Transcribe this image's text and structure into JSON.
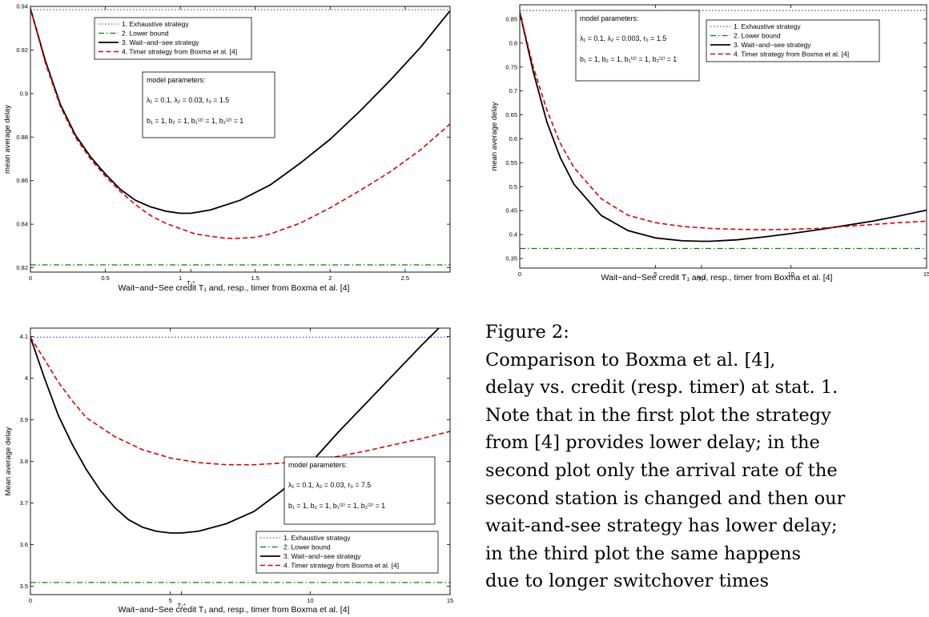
{
  "colors": {
    "exhaustive": "#5555dd",
    "lower_bound": "#008000",
    "wait_and_see": "#000000",
    "timer": "#dd0000"
  },
  "chart_data": [
    {
      "type": "line",
      "ylabel": "mean average delay",
      "xlabel": "Wait−and−See credit T₁ and, resp., timer from Boxma et al. [4]",
      "xlim": [
        0,
        2.8
      ],
      "ylim": [
        0.818,
        0.94
      ],
      "xticks": [
        "0",
        "0.5",
        "1",
        "1.5",
        "2",
        "2.5"
      ],
      "xtick_values": [
        0,
        0.5,
        1,
        1.5,
        2,
        2.5
      ],
      "yticks": [
        "0.82",
        "0.84",
        "0.86",
        "0.88",
        "0.9",
        "0.92",
        "0.94"
      ],
      "ytick_values": [
        0.82,
        0.84,
        0.86,
        0.88,
        0.9,
        0.92,
        0.94
      ],
      "marker": {
        "label": "T₁*",
        "x": 1.07
      },
      "legend": [
        "1. Exhaustive strategy",
        "2. Lower bound",
        "3. Wait−and−see strategy",
        "4. Timer strategy from Boxma et al. [4]"
      ],
      "params_title": "model parameters:",
      "params_line1": "λ₁ = 0.1, λ₂ = 0.03, r₀ = 1.5",
      "params_line2": "b₁ = 1, b₂ = 1, b₁⁽²⁾ = 1, b₂⁽²⁾ = 1",
      "series": [
        {
          "name": "1. Exhaustive strategy",
          "x": [
            0,
            2.8
          ],
          "y": [
            0.9385,
            0.9385
          ]
        },
        {
          "name": "2. Lower bound",
          "x": [
            0,
            2.8
          ],
          "y": [
            0.8213,
            0.8213
          ]
        },
        {
          "name": "3. Wait−and−see strategy",
          "x": [
            0,
            0.1,
            0.2,
            0.3,
            0.4,
            0.5,
            0.6,
            0.7,
            0.8,
            0.9,
            1.0,
            1.07,
            1.2,
            1.4,
            1.6,
            1.8,
            2.0,
            2.2,
            2.4,
            2.6,
            2.8
          ],
          "y": [
            0.939,
            0.915,
            0.895,
            0.881,
            0.871,
            0.863,
            0.856,
            0.851,
            0.848,
            0.846,
            0.845,
            0.845,
            0.8465,
            0.851,
            0.858,
            0.868,
            0.879,
            0.892,
            0.906,
            0.921,
            0.938
          ]
        },
        {
          "name": "4. Timer strategy from Boxma et al. [4]",
          "x": [
            0,
            0.1,
            0.2,
            0.3,
            0.4,
            0.5,
            0.6,
            0.7,
            0.8,
            0.9,
            1.0,
            1.1,
            1.2,
            1.3,
            1.4,
            1.5,
            1.6,
            1.8,
            2.0,
            2.2,
            2.4,
            2.6,
            2.8
          ],
          "y": [
            0.939,
            0.914,
            0.894,
            0.88,
            0.87,
            0.862,
            0.855,
            0.849,
            0.844,
            0.8405,
            0.838,
            0.8355,
            0.8345,
            0.8335,
            0.8335,
            0.834,
            0.8355,
            0.8405,
            0.8475,
            0.8555,
            0.864,
            0.874,
            0.886
          ]
        }
      ]
    },
    {
      "type": "line",
      "ylabel": "mean average delay",
      "xlabel": "Wait−and−See credit T₁ and, resp., timer from Boxma et al. [4]",
      "xlim": [
        0,
        15
      ],
      "ylim": [
        0.33,
        0.88
      ],
      "xticks": [
        "0",
        "5",
        "10",
        "15"
      ],
      "xtick_values": [
        0,
        5,
        10,
        15
      ],
      "yticks": [
        "0.35",
        "0.4",
        "0.45",
        "0.5",
        "0.55",
        "0.6",
        "0.65",
        "0.7",
        "0.75",
        "0.8",
        "0.85"
      ],
      "ytick_values": [
        0.35,
        0.4,
        0.45,
        0.5,
        0.55,
        0.6,
        0.65,
        0.7,
        0.75,
        0.8,
        0.85
      ],
      "marker": {
        "label": "T₁*",
        "x": 6.7
      },
      "legend": [
        "1. Exhaustive strategy",
        "2. Lower bound",
        "3. Wait−and−see strategy",
        "4. Timer strategy from Boxma et al. [4]"
      ],
      "params_title": "model parameters:",
      "params_line1": "λ₁ = 0.1, λ₂ = 0.003, r₀ = 1.5",
      "params_line2": "b₁ = 1, b₂ = 1, b₁⁽²⁾ = 1, b₂⁽²⁾ = 1",
      "series": [
        {
          "name": "1. Exhaustive strategy",
          "x": [
            0,
            15
          ],
          "y": [
            0.868,
            0.868
          ]
        },
        {
          "name": "2. Lower bound",
          "x": [
            0,
            15
          ],
          "y": [
            0.371,
            0.371
          ]
        },
        {
          "name": "3. Wait−and−see strategy",
          "x": [
            0,
            0.5,
            1,
            1.5,
            2,
            3,
            4,
            5,
            6,
            6.7,
            7,
            8,
            9,
            10,
            11,
            12,
            13,
            14,
            15
          ],
          "y": [
            0.865,
            0.74,
            0.635,
            0.56,
            0.505,
            0.44,
            0.408,
            0.393,
            0.387,
            0.386,
            0.386,
            0.389,
            0.395,
            0.402,
            0.41,
            0.419,
            0.428,
            0.439,
            0.451
          ]
        },
        {
          "name": "4. Timer strategy from Boxma et al. [4]",
          "x": [
            0,
            0.5,
            1,
            1.5,
            2,
            3,
            4,
            5,
            6,
            7,
            8,
            9,
            10,
            11,
            12,
            13,
            14,
            15
          ],
          "y": [
            0.865,
            0.75,
            0.66,
            0.59,
            0.54,
            0.475,
            0.44,
            0.425,
            0.417,
            0.413,
            0.411,
            0.41,
            0.411,
            0.413,
            0.417,
            0.421,
            0.425,
            0.428
          ]
        }
      ]
    },
    {
      "type": "line",
      "ylabel": "Mean average delay",
      "xlabel": "Wait−and−See credit T₁ and, resp., timer from Boxma et al. [4]",
      "xlim": [
        0,
        15
      ],
      "ylim": [
        3.48,
        4.12
      ],
      "xticks": [
        "0",
        "5",
        "10",
        "15"
      ],
      "xtick_values": [
        0,
        5,
        10,
        15
      ],
      "yticks": [
        "3.5",
        "3.6",
        "3.7",
        "3.8",
        "3.9",
        "4",
        "4.1"
      ],
      "ytick_values": [
        3.5,
        3.6,
        3.7,
        3.8,
        3.9,
        4,
        4.1
      ],
      "marker": {
        "label": "T₁*",
        "x": 5.4
      },
      "legend": [
        "1. Exhaustive strategy",
        "2. Lower bound",
        "3. Wait−and−see strategy",
        "4. Timer strategy from Boxma et al. [4]"
      ],
      "params_title": "model parameters:",
      "params_line1": "λ₁ = 0.1, λ₂ = 0.03, r₀ = 7.5",
      "params_line2": "b₁ = 1, b₂ = 1, b₁⁽²⁾ = 1, b₂⁽²⁾ = 1",
      "series": [
        {
          "name": "1. Exhaustive strategy",
          "x": [
            0,
            15
          ],
          "y": [
            4.098,
            4.098
          ]
        },
        {
          "name": "2. Lower bound",
          "x": [
            0,
            15
          ],
          "y": [
            3.509,
            3.509
          ]
        },
        {
          "name": "3. Wait−and−see strategy",
          "x": [
            0,
            0.5,
            1,
            1.5,
            2,
            2.5,
            3,
            3.5,
            4,
            4.5,
            5,
            5.4,
            6,
            7,
            8,
            9,
            10,
            11,
            12,
            13,
            14,
            14.6
          ],
          "y": [
            4.098,
            4.0,
            3.91,
            3.84,
            3.78,
            3.73,
            3.69,
            3.66,
            3.642,
            3.632,
            3.628,
            3.628,
            3.632,
            3.65,
            3.68,
            3.73,
            3.795,
            3.87,
            3.94,
            4.01,
            4.08,
            4.12
          ]
        },
        {
          "name": "4. Timer strategy from Boxma et al. [4]",
          "x": [
            0,
            0.5,
            1,
            1.5,
            2,
            3,
            4,
            5,
            6,
            7,
            8,
            9,
            10,
            11,
            12,
            13,
            14,
            15
          ],
          "y": [
            4.098,
            4.045,
            3.99,
            3.945,
            3.905,
            3.86,
            3.828,
            3.808,
            3.797,
            3.792,
            3.792,
            3.796,
            3.803,
            3.812,
            3.825,
            3.84,
            3.855,
            3.872
          ]
        }
      ]
    }
  ],
  "caption": {
    "title": "Figure 2:",
    "lines": [
      "Comparison to Boxma et al. [4],",
      "delay vs. credit (resp. timer) at stat. 1.",
      "Note that in the first plot the strategy",
      "from [4] provides lower delay; in the",
      "second plot only the arrival rate of the",
      "second station is changed and then our",
      "wait-and-see strategy has lower delay;",
      "in the third plot the same happens",
      "due to longer switchover times"
    ]
  }
}
